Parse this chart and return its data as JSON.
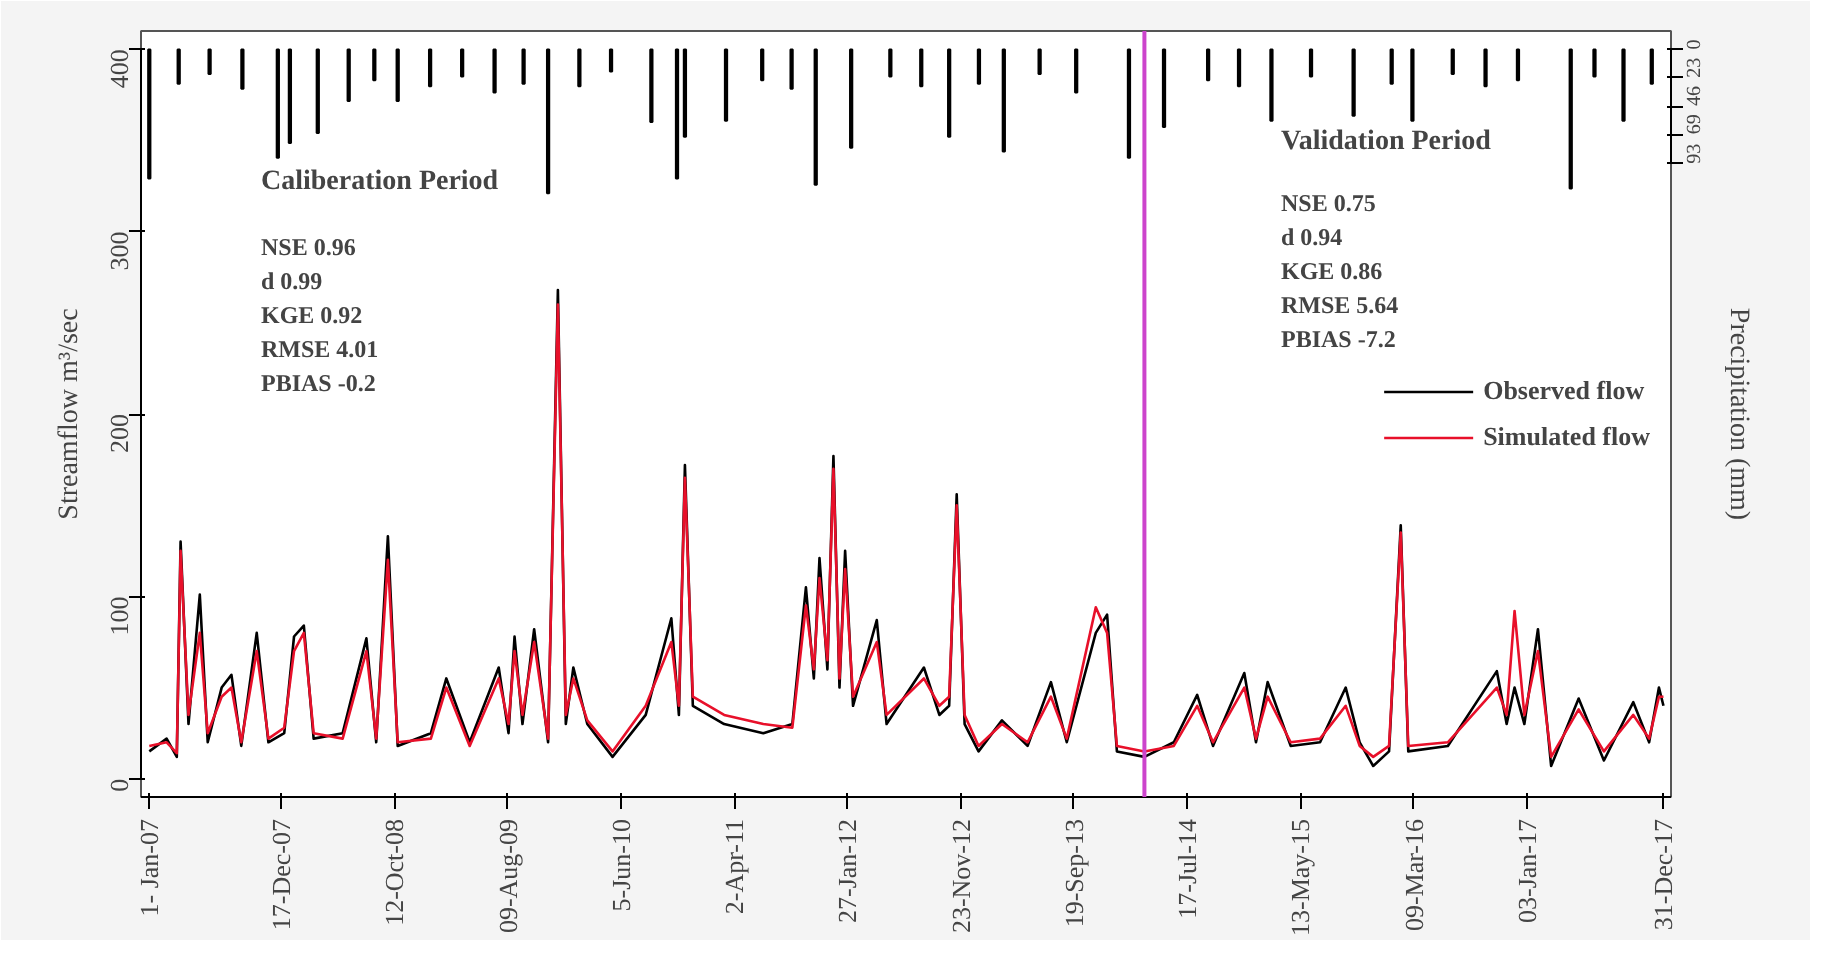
{
  "chart_data": {
    "type": "line",
    "ylabel": "Streamflow m³/sec",
    "y2label": "Precipitation (mm)",
    "xlim": [
      "2006-12-10",
      "2018-01-20"
    ],
    "xticks": [
      {
        "value": "2007-01-01",
        "label": "1- Jan-07"
      },
      {
        "value": "2007-12-17",
        "label": "17-Dec-07"
      },
      {
        "value": "2008-10-12",
        "label": "12-Oct-08"
      },
      {
        "value": "2009-08-09",
        "label": "09-Aug-09"
      },
      {
        "value": "2010-06-05",
        "label": "5-Jun-10"
      },
      {
        "value": "2011-04-02",
        "label": "2-Apr-11"
      },
      {
        "value": "2012-01-27",
        "label": "27-Jan-12"
      },
      {
        "value": "2012-11-23",
        "label": "23-Nov-12"
      },
      {
        "value": "2013-09-19",
        "label": "19-Sep-13"
      },
      {
        "value": "2014-07-17",
        "label": "17-Jul-14"
      },
      {
        "value": "2015-05-13",
        "label": "13-May-15"
      },
      {
        "value": "2016-03-09",
        "label": "09-Mar-16"
      },
      {
        "value": "2017-01-03",
        "label": "03-Jan-17"
      },
      {
        "value": "2017-12-31",
        "label": "31-Dec-17"
      }
    ],
    "ylim": [
      -10,
      410
    ],
    "yticks": [
      0,
      100,
      200,
      300,
      400
    ],
    "y2lim": [
      608,
      -15
    ],
    "y2ticks": [
      0,
      23,
      46,
      69,
      93
    ],
    "grid": false,
    "legend": "right",
    "line_style": "solid",
    "marker": "none",
    "x": [
      "2007-01-01",
      "2007-02-16",
      "2007-03-15",
      "2007-03-25",
      "2007-04-15",
      "2007-05-15",
      "2007-06-05",
      "2007-07-12",
      "2007-08-07",
      "2007-09-02",
      "2007-10-13",
      "2007-11-13",
      "2007-12-25",
      "2008-01-20",
      "2008-02-15",
      "2008-03-12",
      "2008-05-28",
      "2008-07-30",
      "2008-08-25",
      "2008-09-25",
      "2008-10-21",
      "2009-01-17",
      "2009-02-27",
      "2009-04-30",
      "2009-07-16",
      "2009-08-11",
      "2009-08-27",
      "2009-09-17",
      "2009-10-18",
      "2009-11-24",
      "2009-12-20",
      "2010-01-10",
      "2010-01-30",
      "2010-03-08",
      "2010-05-14",
      "2010-08-10",
      "2010-10-17",
      "2010-11-06",
      "2010-11-22",
      "2010-12-13",
      "2011-03-06",
      "2011-06-18",
      "2011-09-03",
      "2011-10-09",
      "2011-10-30",
      "2011-11-14",
      "2011-12-05",
      "2011-12-21",
      "2012-01-06",
      "2012-01-21",
      "2012-02-11",
      "2012-04-14",
      "2012-05-10",
      "2012-08-17",
      "2012-09-27",
      "2012-10-23",
      "2012-11-12",
      "2012-12-03",
      "2013-01-09",
      "2013-03-12",
      "2013-05-19",
      "2013-07-20",
      "2013-08-31",
      "2013-11-16",
      "2013-12-16",
      "2014-01-11",
      "2014-03-25",
      "2014-06-11",
      "2014-08-12",
      "2014-09-23",
      "2014-12-15",
      "2015-01-15",
      "2015-02-15",
      "2015-04-17",
      "2015-07-04",
      "2015-09-10",
      "2015-10-17",
      "2015-11-22",
      "2016-01-03",
      "2016-02-03",
      "2016-02-23",
      "2016-06-07",
      "2016-10-15",
      "2016-11-10",
      "2016-12-01",
      "2016-12-27",
      "2017-02-01",
      "2017-03-08",
      "2017-05-20",
      "2017-07-26",
      "2017-10-12",
      "2017-11-23",
      "2017-12-19",
      "2017-12-31"
    ],
    "series": [
      {
        "name": "Observed flow",
        "color": "#000000",
        "values": [
          15,
          22,
          12,
          130,
          30,
          101,
          20,
          50,
          57,
          18,
          80,
          20,
          25,
          78,
          84,
          22,
          25,
          77,
          20,
          133,
          18,
          25,
          55,
          20,
          61,
          25,
          78,
          30,
          82,
          20,
          268,
          30,
          61,
          30,
          12,
          35,
          88,
          35,
          172,
          40,
          30,
          25,
          30,
          105,
          55,
          121,
          60,
          177,
          50,
          125,
          40,
          87,
          30,
          61,
          35,
          40,
          156,
          30,
          15,
          32,
          18,
          53,
          20,
          80,
          90,
          15,
          12,
          20,
          46,
          18,
          58,
          20,
          53,
          18,
          20,
          50,
          20,
          7,
          15,
          139,
          15,
          18,
          59,
          30,
          50,
          30,
          82,
          7,
          44,
          10,
          42,
          20,
          50,
          40
        ]
      },
      {
        "name": "Simulated flow",
        "color": "#e8102a",
        "values": [
          18,
          20,
          14,
          125,
          35,
          80,
          25,
          45,
          50,
          20,
          70,
          22,
          28,
          70,
          80,
          25,
          22,
          70,
          22,
          120,
          20,
          22,
          50,
          18,
          55,
          30,
          70,
          35,
          75,
          22,
          260,
          35,
          55,
          32,
          15,
          40,
          75,
          40,
          165,
          45,
          35,
          30,
          28,
          95,
          60,
          110,
          65,
          170,
          55,
          115,
          45,
          75,
          35,
          55,
          40,
          45,
          150,
          35,
          18,
          30,
          20,
          45,
          22,
          94,
          80,
          18,
          15,
          18,
          40,
          20,
          50,
          22,
          45,
          20,
          22,
          40,
          18,
          12,
          18,
          135,
          18,
          20,
          50,
          35,
          92,
          35,
          70,
          12,
          38,
          15,
          35,
          22,
          45,
          45
        ]
      },
      {
        "type": "bar",
        "axis": "y2",
        "color": "#000000",
        "x": [
          "2007-01-01",
          "2007-03-20",
          "2007-06-10",
          "2007-09-05",
          "2007-12-08",
          "2008-01-09",
          "2008-03-23",
          "2008-06-13",
          "2008-08-20",
          "2008-10-21",
          "2009-01-15",
          "2009-04-10",
          "2009-07-05",
          "2009-09-20",
          "2009-11-24",
          "2010-02-15",
          "2010-05-10",
          "2010-08-25",
          "2010-11-01",
          "2010-11-22",
          "2011-03-11",
          "2011-06-15",
          "2011-09-01",
          "2011-11-04",
          "2012-02-06",
          "2012-05-20",
          "2012-08-10",
          "2012-10-23",
          "2013-01-10",
          "2013-03-17",
          "2013-06-20",
          "2013-09-25",
          "2014-02-12",
          "2014-05-16",
          "2014-09-10",
          "2014-12-01",
          "2015-02-25",
          "2015-06-10",
          "2015-10-01",
          "2016-01-10",
          "2016-03-05",
          "2016-06-20",
          "2016-09-15",
          "2016-12-10",
          "2017-04-29",
          "2017-07-01",
          "2017-09-16",
          "2017-11-30"
        ],
        "values": [
          105,
          28,
          20,
          32,
          88,
          76,
          68,
          42,
          25,
          42,
          30,
          22,
          35,
          28,
          117,
          30,
          18,
          59,
          105,
          71,
          58,
          25,
          32,
          110,
          80,
          22,
          30,
          71,
          28,
          83,
          20,
          35,
          88,
          63,
          25,
          30,
          58,
          22,
          54,
          28,
          58,
          20,
          30,
          25,
          113,
          22,
          58,
          28
        ]
      }
    ],
    "ref_lines": [
      {
        "axis": "x",
        "value": "2014-03-25",
        "color": "#cc44cc"
      }
    ],
    "annotations": [
      "Caliberation Period",
      "NSE    0.96",
      "d        0.99",
      "KGE   0.92",
      "RMSE 4.01",
      "PBIAS -0.2",
      "Validation Period",
      "NSE      0.75",
      "d          0.94",
      "KGE     0.86",
      "RMSE   5.64",
      "PBIAS   -7.2"
    ]
  }
}
